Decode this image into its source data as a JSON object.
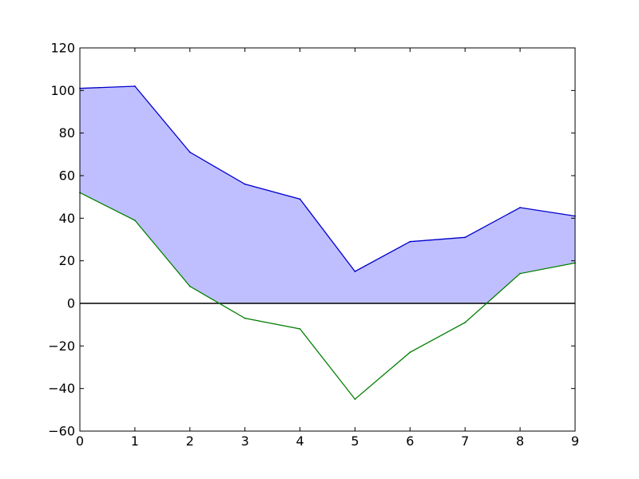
{
  "chart_data": {
    "type": "line",
    "x": [
      0,
      1,
      2,
      3,
      4,
      5,
      6,
      7,
      8,
      9
    ],
    "series": [
      {
        "values": [
          101,
          102,
          71,
          56,
          49,
          15,
          29,
          31,
          45,
          41
        ],
        "color": "#0000cc"
      },
      {
        "values": [
          52,
          39,
          8,
          -7,
          -12,
          -45,
          -23,
          -9,
          14,
          19
        ],
        "color": "#007f00"
      }
    ],
    "fill_between": {
      "color": "#bfbfff",
      "where": "upper series above zero, lower bound max(lower series, 0)"
    },
    "reference_line": {
      "y": 0,
      "color": "#000000"
    },
    "xlim": [
      0,
      9
    ],
    "ylim": [
      -60,
      120
    ],
    "xticks": [
      0,
      1,
      2,
      3,
      4,
      5,
      6,
      7,
      8,
      9
    ],
    "yticks": [
      -60,
      -40,
      -20,
      0,
      20,
      40,
      60,
      80,
      100,
      120
    ],
    "xtick_labels": [
      "0",
      "1",
      "2",
      "3",
      "4",
      "5",
      "6",
      "7",
      "8",
      "9"
    ],
    "ytick_labels": [
      "−60",
      "−40",
      "−20",
      "0",
      "20",
      "40",
      "60",
      "80",
      "100",
      "120"
    ],
    "title": "",
    "xlabel": "",
    "ylabel": "",
    "grid": false,
    "legend": "none"
  }
}
